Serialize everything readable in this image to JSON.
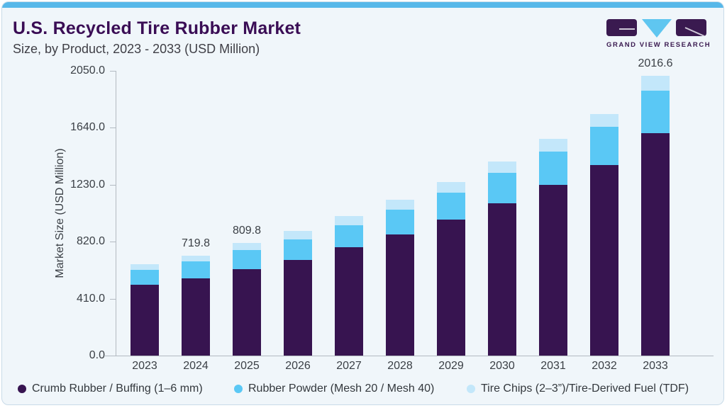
{
  "page": {
    "title": "U.S. Recycled Tire Rubber Market",
    "subtitle": "Size, by Product, 2023 - 2033 (USD Million)",
    "brand": "GRAND VIEW RESEARCH"
  },
  "colors": {
    "accent_strip": "#57B8E9",
    "card_background": "#F0F6FA",
    "title_purple": "#3A0D55",
    "crumb_rubber": "#371450",
    "rubber_powder": "#5AC8F5",
    "tire_chips": "#C3E7FA"
  },
  "chart_data": {
    "type": "bar",
    "stacked": true,
    "title": "U.S. Recycled Tire Rubber Market",
    "subtitle": "Size, by Product, 2023 - 2033 (USD Million)",
    "ylabel": "Market Size (USD Million)",
    "xlabel": "",
    "ylim": [
      0,
      2050
    ],
    "yticks": [
      0,
      410,
      820,
      1230,
      1640,
      2050
    ],
    "ytick_labels": [
      "0.0",
      "410.0",
      "820.0",
      "1230.0",
      "1640.0",
      "2050.0"
    ],
    "grid": false,
    "legend_position": "bottom",
    "categories": [
      "2023",
      "2024",
      "2025",
      "2026",
      "2027",
      "2028",
      "2029",
      "2030",
      "2031",
      "2032",
      "2033"
    ],
    "series": [
      {
        "name": "Crumb Rubber / Buffing (1–6 mm)",
        "color": "#371450",
        "values": [
          511.6,
          554.2,
          621.9,
          687.3,
          779.5,
          872.6,
          977.8,
          1098.4,
          1228.5,
          1369.4,
          1600.8
        ]
      },
      {
        "name": "Rubber Powder (Mesh 20 / Mesh 40)",
        "color": "#5AC8F5",
        "values": [
          106.7,
          122.1,
          135.5,
          148.2,
          161.2,
          178.0,
          193.2,
          215.1,
          241.1,
          278.2,
          305.9
        ]
      },
      {
        "name": "Tire Chips (2–3”)/Tire-Derived Fuel (TDF)",
        "color": "#C3E7FA",
        "values": [
          39.1,
          43.5,
          52.4,
          62.6,
          64.1,
          71.2,
          78.0,
          84.9,
          89.4,
          93.0,
          109.9
        ]
      }
    ],
    "totals": [
      657.4,
      719.8,
      809.8,
      898.1,
      1004.8,
      1121.8,
      1249.0,
      1398.4,
      1559.0,
      1740.6,
      2016.6
    ],
    "bar_labels": [
      "",
      "719.8",
      "809.8",
      "",
      "",
      "",
      "",
      "",
      "",
      "",
      "2016.6"
    ]
  }
}
